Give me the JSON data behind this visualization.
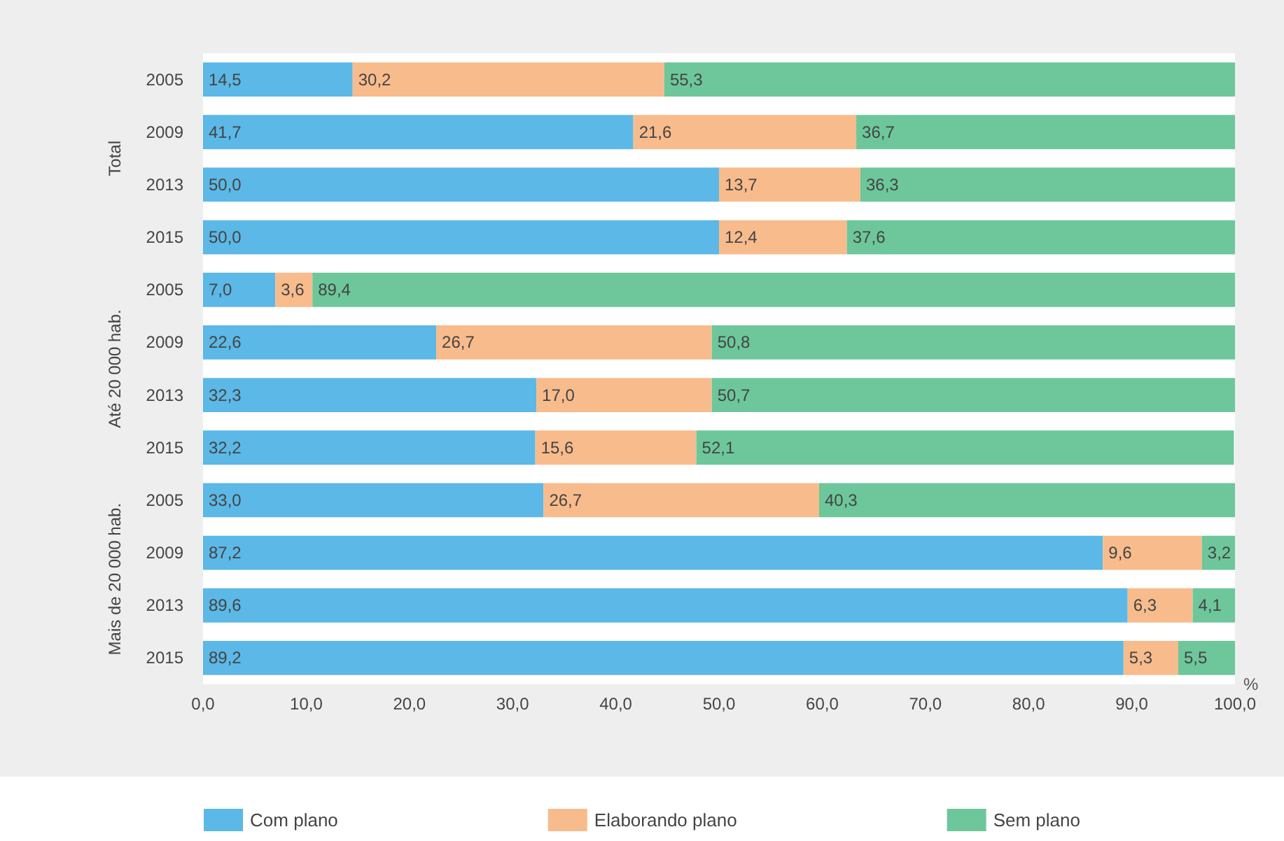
{
  "chart_data": {
    "type": "bar",
    "orientation": "horizontal",
    "stacked": true,
    "categories": [
      "2005",
      "2009",
      "2013",
      "2015",
      "2005",
      "2009",
      "2013",
      "2015",
      "2005",
      "2009",
      "2013",
      "2015"
    ],
    "series": [
      {
        "name": "Com plano",
        "color": "#5cb8e6",
        "values": [
          14.5,
          41.7,
          50.0,
          50.0,
          7.0,
          22.6,
          32.3,
          32.2,
          33.0,
          87.2,
          89.6,
          89.2
        ],
        "value_labels": [
          "14,5",
          "41,7",
          "50,0",
          "50,0",
          "7,0",
          "22,6",
          "32,3",
          "32,2",
          "33,0",
          "87,2",
          "89,6",
          "89,2"
        ]
      },
      {
        "name": "Elaborando plano",
        "color": "#f8bb8c",
        "values": [
          30.2,
          21.6,
          13.7,
          12.4,
          3.6,
          26.7,
          17.0,
          15.6,
          26.7,
          9.6,
          6.3,
          5.3
        ],
        "value_labels": [
          "30,2",
          "21,6",
          "13,7",
          "12,4",
          "3,6",
          "26,7",
          "17,0",
          "15,6",
          "26,7",
          "9,6",
          "6,3",
          "5,3"
        ]
      },
      {
        "name": "Sem plano",
        "color": "#6dc79b",
        "values": [
          55.3,
          36.7,
          36.3,
          37.6,
          89.4,
          50.8,
          50.7,
          52.1,
          40.3,
          3.2,
          4.1,
          5.5
        ],
        "value_labels": [
          "55,3",
          "36,7",
          "36,3",
          "37,6",
          "89,4",
          "50,8",
          "50,7",
          "52,1",
          "40,3",
          "3,2",
          "4,1",
          "5,5"
        ]
      }
    ],
    "xlabel": "%",
    "xlim": [
      0,
      100
    ],
    "xticks": [
      {
        "value": 0,
        "label": "0,0"
      },
      {
        "value": 10,
        "label": "10,0"
      },
      {
        "value": 20,
        "label": "20,0"
      },
      {
        "value": 30,
        "label": "30,0"
      },
      {
        "value": 40,
        "label": "40,0"
      },
      {
        "value": 50,
        "label": "50,0"
      },
      {
        "value": 60,
        "label": "60,0"
      },
      {
        "value": 70,
        "label": "70,0"
      },
      {
        "value": 80,
        "label": "80,0"
      },
      {
        "value": 90,
        "label": "90,0"
      },
      {
        "value": 100,
        "label": "100,0"
      }
    ],
    "annotations": [
      "Total",
      "Até 20 000 hab.",
      "Mais de 20 000 hab."
    ],
    "legend": "bottom",
    "grid": false
  }
}
